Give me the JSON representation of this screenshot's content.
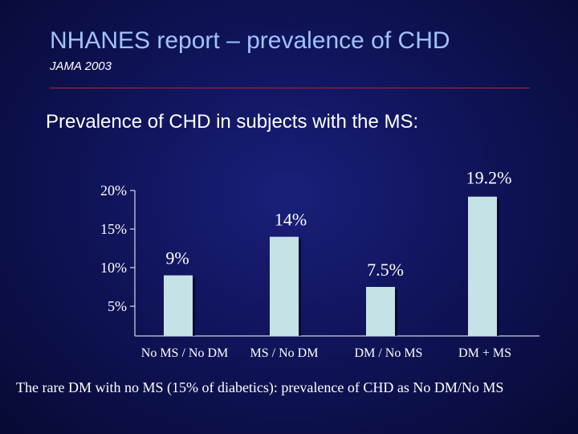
{
  "slide": {
    "title": "NHANES report – prevalence of CHD",
    "subtitle": "JAMA 2003",
    "heading": "Prevalence of CHD in subjects with the MS:",
    "footnote": "The rare DM with no MS (15% of diabetics): prevalence of CHD as No DM/No MS"
  },
  "chart_data": {
    "type": "bar",
    "categories": [
      "No MS / No DM",
      "MS / No DM",
      "DM / No MS",
      "DM + MS"
    ],
    "values": [
      9,
      14,
      7.5,
      19.2
    ],
    "data_labels": [
      "9%",
      "14%",
      "7.5%",
      "19.2%"
    ],
    "y_ticks": [
      5,
      10,
      15,
      20
    ],
    "y_tick_labels": [
      "5%",
      "10%",
      "15%",
      "20%"
    ],
    "title": "",
    "xlabel": "",
    "ylabel": "",
    "grid": false,
    "legend": "none",
    "colors": {
      "bar": "#c5e3e7",
      "axis": "#ffffff",
      "text": "#ffffff"
    }
  }
}
